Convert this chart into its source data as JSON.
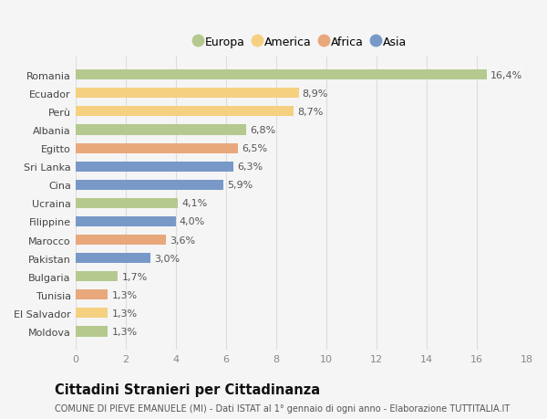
{
  "countries": [
    "Romania",
    "Ecuador",
    "Perù",
    "Albania",
    "Egitto",
    "Sri Lanka",
    "Cina",
    "Ucraina",
    "Filippine",
    "Marocco",
    "Pakistan",
    "Bulgaria",
    "Tunisia",
    "El Salvador",
    "Moldova"
  ],
  "values": [
    16.4,
    8.9,
    8.7,
    6.8,
    6.5,
    6.3,
    5.9,
    4.1,
    4.0,
    3.6,
    3.0,
    1.7,
    1.3,
    1.3,
    1.3
  ],
  "labels": [
    "16,4%",
    "8,9%",
    "8,7%",
    "6,8%",
    "6,5%",
    "6,3%",
    "5,9%",
    "4,1%",
    "4,0%",
    "3,6%",
    "3,0%",
    "1,7%",
    "1,3%",
    "1,3%",
    "1,3%"
  ],
  "continents": [
    "Europa",
    "America",
    "America",
    "Europa",
    "Africa",
    "Asia",
    "Asia",
    "Europa",
    "Asia",
    "Africa",
    "Asia",
    "Europa",
    "Africa",
    "America",
    "Europa"
  ],
  "colors": {
    "Europa": "#b5c98e",
    "America": "#f5d080",
    "Africa": "#e8a87c",
    "Asia": "#7899c8"
  },
  "legend_order": [
    "Europa",
    "America",
    "Africa",
    "Asia"
  ],
  "title": "Cittadini Stranieri per Cittadinanza",
  "subtitle": "COMUNE DI PIEVE EMANUELE (MI) - Dati ISTAT al 1° gennaio di ogni anno - Elaborazione TUTTITALIA.IT",
  "xlim": [
    0,
    18
  ],
  "xticks": [
    0,
    2,
    4,
    6,
    8,
    10,
    12,
    14,
    16,
    18
  ],
  "background_color": "#f5f5f5",
  "grid_color": "#dddddd",
  "bar_height": 0.55,
  "label_fontsize": 8,
  "tick_fontsize": 8,
  "title_fontsize": 10.5,
  "subtitle_fontsize": 7
}
